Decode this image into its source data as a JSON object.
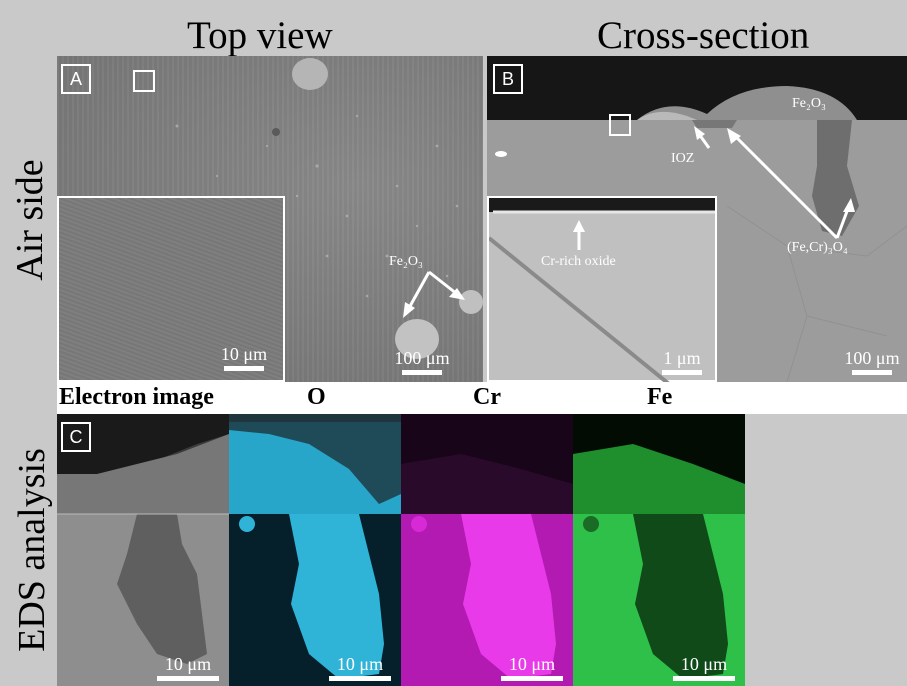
{
  "headers": {
    "top_view": "Top view",
    "cross_section": "Cross-section",
    "air_side": "Air side",
    "eds_analysis": "EDS analysis"
  },
  "panel_a": {
    "letter": "A",
    "annotation_fe2o3": "Fe₂O₃",
    "scale_main": "100 μm",
    "scale_inset": "10 μm"
  },
  "panel_b": {
    "letter": "B",
    "annotation_fe2o3": "Fe₂O₃",
    "annotation_ioz": "IOZ",
    "annotation_spinel": "(Fe,Cr)₃O₄",
    "annotation_cr_oxide": "Cr-rich oxide",
    "scale_main": "100 μm",
    "scale_inset": "1 μm"
  },
  "eds": {
    "letter": "C",
    "labels": {
      "electron": "Electron image",
      "o": "O",
      "cr": "Cr",
      "fe": "Fe"
    },
    "scale": "10 μm"
  },
  "colors": {
    "oxygen_map": "#27a6c9",
    "chromium_map": "#b21ab2",
    "iron_map": "#2fc04a",
    "annotation": "#ffffff"
  }
}
